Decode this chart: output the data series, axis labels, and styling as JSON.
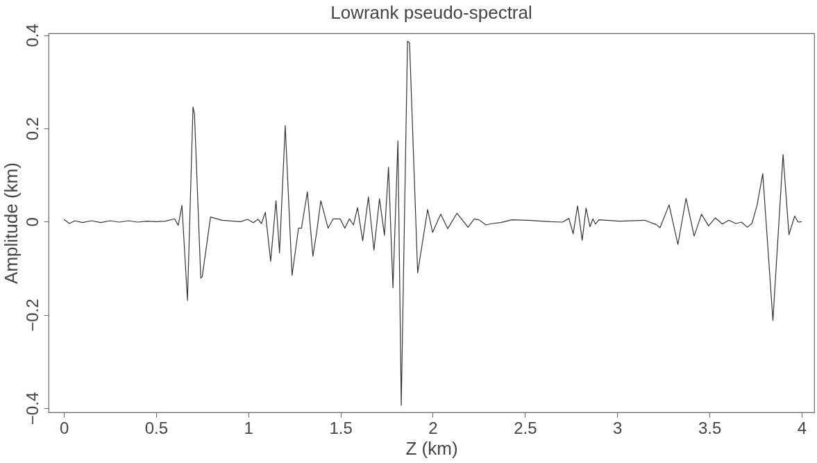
{
  "chart_data": {
    "type": "line",
    "title": "Lowrank pseudo-spectral",
    "xlabel": "Z (km)",
    "ylabel": "Amplitude (km)",
    "xlim": [
      -0.083,
      4.068
    ],
    "ylim": [
      -0.409,
      0.404
    ],
    "xticks": [
      0,
      0.5,
      1,
      1.5,
      2,
      2.5,
      3,
      3.5,
      4
    ],
    "yticks": [
      -0.4,
      -0.2,
      0,
      0.2,
      0.4
    ],
    "grid": false,
    "x": [
      0,
      0.03,
      0.06,
      0.1,
      0.15,
      0.2,
      0.25,
      0.3,
      0.35,
      0.4,
      0.45,
      0.5,
      0.55,
      0.6,
      0.62,
      0.64,
      0.67,
      0.7,
      0.708,
      0.742,
      0.75,
      0.795,
      0.858,
      0.958,
      0.996,
      1.027,
      1.052,
      1.071,
      1.092,
      1.121,
      1.15,
      1.169,
      1.2,
      1.237,
      1.272,
      1.288,
      1.32,
      1.35,
      1.37,
      1.393,
      1.432,
      1.46,
      1.498,
      1.523,
      1.548,
      1.57,
      1.592,
      1.62,
      1.651,
      1.681,
      1.711,
      1.738,
      1.76,
      1.784,
      1.811,
      1.829,
      1.863,
      1.874,
      1.918,
      1.972,
      1.999,
      2.043,
      2.081,
      2.131,
      2.191,
      2.225,
      2.25,
      2.288,
      2.323,
      2.368,
      2.43,
      2.516,
      2.637,
      2.704,
      2.738,
      2.761,
      2.785,
      2.81,
      2.831,
      2.852,
      2.868,
      2.882,
      2.901,
      3.014,
      3.148,
      3.21,
      3.232,
      3.281,
      3.329,
      3.373,
      3.417,
      3.457,
      3.495,
      3.532,
      3.57,
      3.605,
      3.643,
      3.674,
      3.705,
      3.73,
      3.758,
      3.789,
      3.844,
      3.899,
      3.931,
      3.962,
      3.981,
      4.0
    ],
    "series": [
      {
        "color": "#333333",
        "values": [
          0.005,
          -0.004,
          0.002,
          -0.002,
          0.002,
          -0.002,
          0.002,
          -0.001,
          0.002,
          -0.001,
          0.001,
          0,
          0.001,
          0.006,
          -0.008,
          0.035,
          -0.169,
          0.246,
          0.231,
          -0.121,
          -0.118,
          0.01,
          0.003,
          0,
          0.005,
          -0.002,
          0.005,
          -0.004,
          0.02,
          -0.085,
          0.045,
          -0.067,
          0.206,
          -0.115,
          -0.014,
          -0.014,
          0.064,
          -0.074,
          -0.024,
          0.045,
          -0.014,
          0.006,
          0.006,
          -0.014,
          0.006,
          -0.007,
          0.03,
          -0.041,
          0.053,
          -0.061,
          0.049,
          -0.029,
          0.117,
          -0.142,
          0.173,
          -0.394,
          0.387,
          0.384,
          -0.11,
          0.026,
          -0.023,
          0.016,
          -0.015,
          0.018,
          -0.012,
          0.006,
          0.004,
          -0.007,
          -0.004,
          -0.002,
          0.004,
          0.003,
          0,
          -0.001,
          0.007,
          -0.026,
          0.034,
          -0.04,
          0.029,
          -0.011,
          0.006,
          -0.005,
          0.004,
          0.001,
          0.003,
          -0.006,
          -0.013,
          0.036,
          -0.049,
          0.05,
          -0.031,
          0.016,
          -0.009,
          0.008,
          -0.005,
          0.003,
          -0.004,
          -0.001,
          -0.012,
          -0.004,
          0.035,
          0.103,
          -0.212,
          0.144,
          -0.028,
          0.012,
          -0.001,
          0
        ]
      }
    ]
  }
}
